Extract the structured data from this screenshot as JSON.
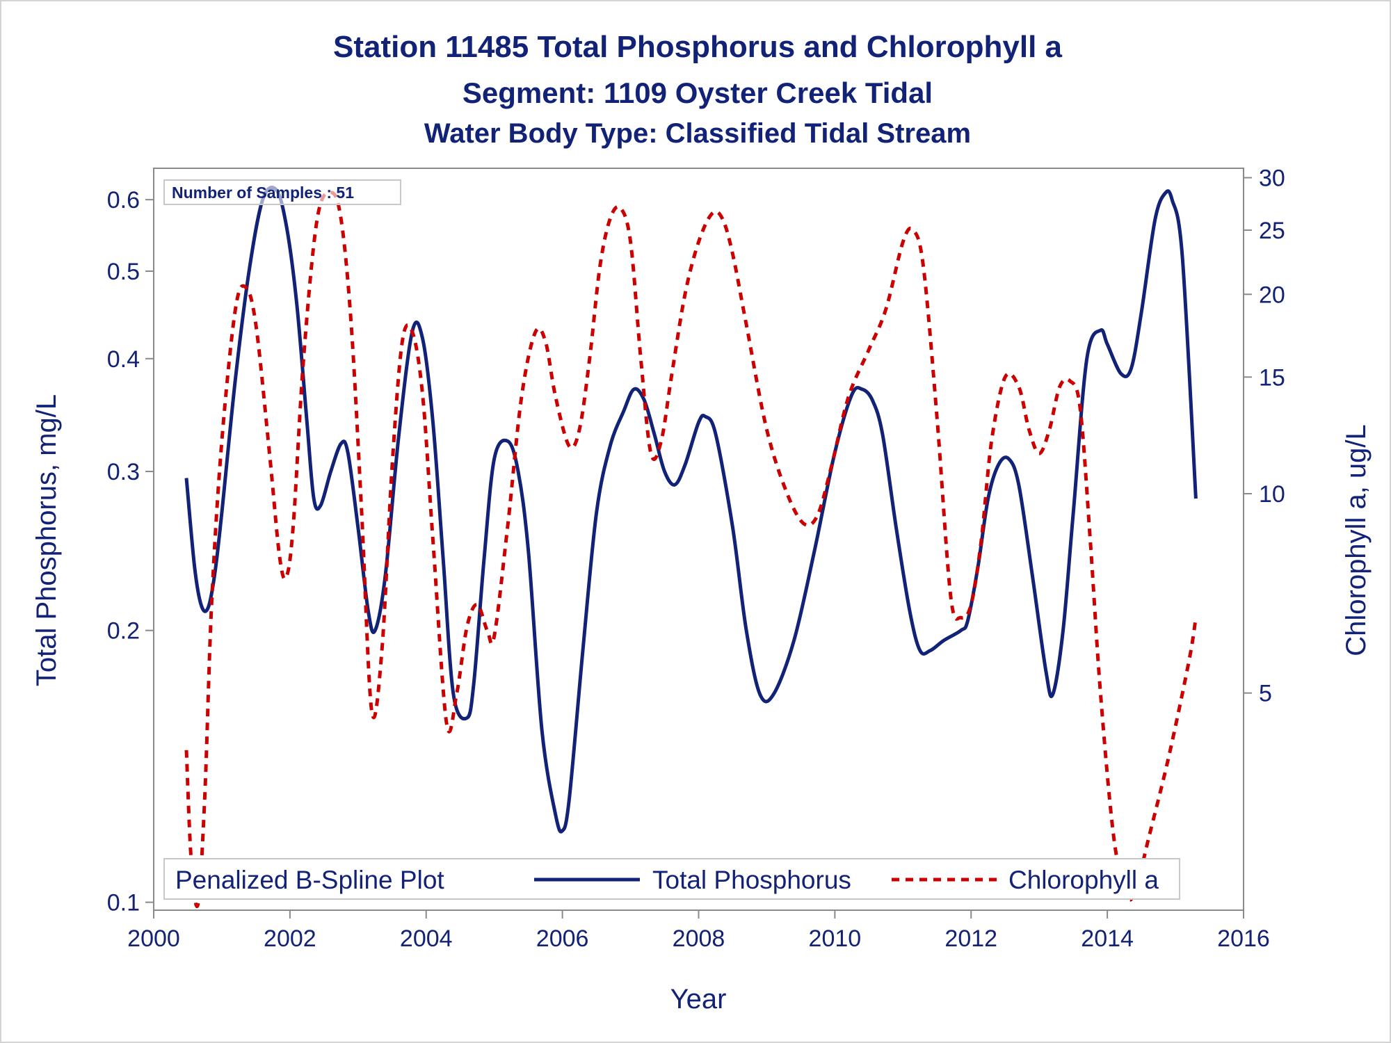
{
  "chart_data": {
    "type": "line",
    "title": "Station 11485  Total Phosphorus and Chlorophyll a",
    "subtitle": "Segment: 1109  Oyster Creek Tidal",
    "subtitle2": "Water Body Type: Classified Tidal Stream",
    "xlabel": "Year",
    "ylabel": "Total Phosphorus, mg/L",
    "y2label": "Chlorophyll a, ug/L",
    "xlim": [
      2000,
      2016
    ],
    "xticks": [
      "2000",
      "2002",
      "2004",
      "2006",
      "2008",
      "2010",
      "2012",
      "2014",
      "2016"
    ],
    "ylim": [
      0.098,
      0.65
    ],
    "yscale": "log",
    "yticks": [
      "0.1",
      "0.2",
      "0.3",
      "0.4",
      "0.5",
      "0.6"
    ],
    "y2lim": [
      2.35,
      31.0
    ],
    "y2scale": "log",
    "y2ticks": [
      "5",
      "10",
      "15",
      "20",
      "25",
      "30"
    ],
    "inset": "Number of Samples : 51",
    "legend_title": "Penalized B-Spline Plot",
    "legend_position": "bottom-inside",
    "grid": false,
    "series": [
      {
        "name": "Total Phosphorus",
        "axis": "left",
        "color": "#112277",
        "style": "solid",
        "x": [
          2000.48,
          2000.6,
          2000.7,
          2000.8,
          2000.9,
          2001.0,
          2001.2,
          2001.4,
          2001.6,
          2001.8,
          2001.95,
          2002.1,
          2002.25,
          2002.35,
          2002.45,
          2002.6,
          2002.75,
          2002.85,
          2003.0,
          2003.15,
          2003.25,
          2003.4,
          2003.6,
          2003.8,
          2003.95,
          2004.1,
          2004.25,
          2004.4,
          2004.6,
          2004.7,
          2004.85,
          2005.0,
          2005.2,
          2005.35,
          2005.5,
          2005.7,
          2005.9,
          2006.0,
          2006.1,
          2006.3,
          2006.5,
          2006.7,
          2006.9,
          2007.05,
          2007.2,
          2007.35,
          2007.5,
          2007.65,
          2007.8,
          2008.0,
          2008.1,
          2008.25,
          2008.5,
          2008.7,
          2008.9,
          2009.1,
          2009.4,
          2009.7,
          2010.0,
          2010.25,
          2010.4,
          2010.55,
          2010.7,
          2010.9,
          2011.1,
          2011.25,
          2011.4,
          2011.6,
          2011.85,
          2011.95,
          2012.1,
          2012.25,
          2012.4,
          2012.55,
          2012.7,
          2012.9,
          2013.1,
          2013.2,
          2013.35,
          2013.5,
          2013.7,
          2013.9,
          2014.0,
          2014.2,
          2014.35,
          2014.5,
          2014.7,
          2014.85,
          2014.95,
          2015.1,
          2015.3
        ],
        "y": [
          0.295,
          0.235,
          0.213,
          0.212,
          0.232,
          0.27,
          0.38,
          0.5,
          0.6,
          0.615,
          0.56,
          0.46,
          0.34,
          0.28,
          0.275,
          0.3,
          0.322,
          0.315,
          0.26,
          0.21,
          0.2,
          0.23,
          0.33,
          0.43,
          0.42,
          0.34,
          0.24,
          0.17,
          0.16,
          0.175,
          0.24,
          0.31,
          0.324,
          0.3,
          0.245,
          0.155,
          0.125,
          0.12,
          0.13,
          0.19,
          0.27,
          0.32,
          0.35,
          0.37,
          0.36,
          0.33,
          0.3,
          0.29,
          0.305,
          0.34,
          0.345,
          0.33,
          0.26,
          0.2,
          0.17,
          0.17,
          0.195,
          0.245,
          0.315,
          0.365,
          0.37,
          0.36,
          0.33,
          0.26,
          0.21,
          0.19,
          0.19,
          0.195,
          0.2,
          0.205,
          0.235,
          0.28,
          0.305,
          0.31,
          0.29,
          0.23,
          0.18,
          0.17,
          0.2,
          0.27,
          0.4,
          0.43,
          0.415,
          0.385,
          0.39,
          0.45,
          0.57,
          0.61,
          0.6,
          0.52,
          0.28
        ]
      },
      {
        "name": "Chlorophyll a",
        "axis": "right",
        "color": "#cc0000",
        "style": "dashed",
        "x": [
          2000.48,
          2000.55,
          2000.65,
          2000.75,
          2000.85,
          2001.0,
          2001.2,
          2001.35,
          2001.5,
          2001.7,
          2001.85,
          2001.95,
          2002.05,
          2002.2,
          2002.4,
          2002.6,
          2002.75,
          2002.9,
          2003.05,
          2003.2,
          2003.35,
          2003.5,
          2003.65,
          2003.8,
          2003.95,
          2004.1,
          2004.3,
          2004.45,
          2004.6,
          2004.75,
          2004.9,
          2005.0,
          2005.2,
          2005.4,
          2005.6,
          2005.75,
          2005.9,
          2006.1,
          2006.25,
          2006.4,
          2006.55,
          2006.7,
          2006.85,
          2007.0,
          2007.15,
          2007.3,
          2007.45,
          2007.6,
          2007.8,
          2008.0,
          2008.2,
          2008.35,
          2008.5,
          2008.7,
          2009.0,
          2009.3,
          2009.55,
          2009.75,
          2009.95,
          2010.2,
          2010.5,
          2010.75,
          2011.0,
          2011.15,
          2011.3,
          2011.5,
          2011.7,
          2011.85,
          2012.0,
          2012.15,
          2012.3,
          2012.5,
          2012.7,
          2012.85,
          2013.0,
          2013.15,
          2013.3,
          2013.45,
          2013.6,
          2013.75,
          2013.9,
          2014.1,
          2014.3,
          2014.45,
          2014.6,
          2014.9,
          2015.2,
          2015.3
        ],
        "y": [
          4.1,
          2.8,
          2.4,
          3.5,
          6.8,
          12.0,
          19.0,
          20.5,
          18.0,
          11.5,
          8.0,
          7.5,
          9.0,
          16.0,
          26.0,
          28.5,
          26.0,
          18.0,
          9.5,
          4.7,
          5.8,
          11.0,
          17.0,
          17.5,
          14.0,
          8.5,
          4.5,
          5.0,
          6.3,
          6.8,
          6.2,
          6.1,
          9.0,
          14.0,
          17.5,
          17.0,
          14.0,
          11.8,
          12.5,
          16.0,
          22.0,
          26.0,
          27.0,
          24.0,
          16.0,
          11.5,
          12.0,
          15.0,
          20.0,
          24.0,
          26.5,
          26.0,
          23.0,
          18.0,
          12.5,
          10.0,
          9.0,
          9.3,
          11.0,
          14.0,
          16.5,
          19.0,
          24.0,
          25.0,
          22.0,
          13.0,
          7.0,
          6.5,
          6.8,
          8.5,
          12.0,
          15.0,
          14.5,
          12.5,
          11.5,
          12.5,
          14.5,
          14.8,
          13.5,
          8.5,
          5.0,
          3.0,
          2.45,
          2.6,
          3.0,
          4.0,
          5.6,
          6.5
        ]
      }
    ]
  }
}
